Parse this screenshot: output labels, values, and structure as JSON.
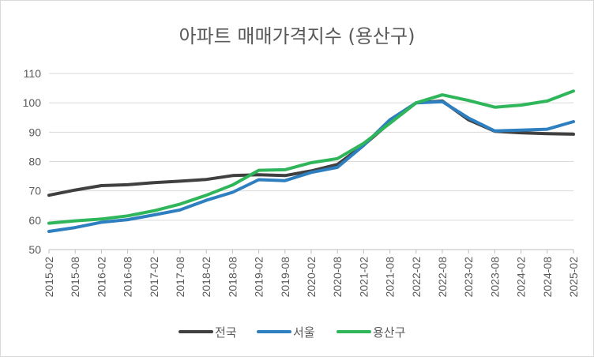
{
  "chart_data": {
    "type": "line",
    "title": "아파트 매매가격지수 (용산구)",
    "xlabel": "",
    "ylabel": "",
    "ylim": [
      50,
      110
    ],
    "yticks": [
      50,
      60,
      70,
      80,
      90,
      100,
      110
    ],
    "grid": true,
    "legend_position": "bottom",
    "x_tick_labels": [
      "2015-02",
      "2015-08",
      "2016-02",
      "2016-08",
      "2017-02",
      "2017-08",
      "2018-02",
      "2018-08",
      "2019-02",
      "2019-08",
      "2020-02",
      "2020-08",
      "2021-02",
      "2021-08",
      "2022-02",
      "2022-08",
      "2023-02",
      "2023-08",
      "2024-02",
      "2024-08",
      "2025-02"
    ],
    "series": [
      {
        "name": "전국",
        "color": "#404040",
        "points": [
          [
            "2015-02",
            68.5
          ],
          [
            "2015-08",
            70.3
          ],
          [
            "2016-02",
            71.8
          ],
          [
            "2016-08",
            72.1
          ],
          [
            "2017-02",
            72.8
          ],
          [
            "2017-08",
            73.3
          ],
          [
            "2018-02",
            73.9
          ],
          [
            "2018-08",
            75.2
          ],
          [
            "2019-02",
            75.5
          ],
          [
            "2019-08",
            75.2
          ],
          [
            "2020-02",
            76.8
          ],
          [
            "2020-08",
            79.0
          ],
          [
            "2021-02",
            85.6
          ],
          [
            "2021-08",
            93.2
          ],
          [
            "2022-02",
            100.0
          ],
          [
            "2022-08",
            100.6
          ],
          [
            "2023-02",
            94.2
          ],
          [
            "2023-08",
            90.3
          ],
          [
            "2024-02",
            89.8
          ],
          [
            "2024-08",
            89.5
          ],
          [
            "2025-02",
            89.3
          ]
        ]
      },
      {
        "name": "서울",
        "color": "#2e7fc0",
        "points": [
          [
            "2015-02",
            56.2
          ],
          [
            "2015-08",
            57.5
          ],
          [
            "2016-02",
            59.3
          ],
          [
            "2016-08",
            60.2
          ],
          [
            "2017-02",
            61.8
          ],
          [
            "2017-08",
            63.5
          ],
          [
            "2018-02",
            66.8
          ],
          [
            "2018-08",
            69.5
          ],
          [
            "2019-02",
            73.8
          ],
          [
            "2019-08",
            73.5
          ],
          [
            "2020-02",
            76.3
          ],
          [
            "2020-08",
            78.0
          ],
          [
            "2021-02",
            85.5
          ],
          [
            "2021-08",
            94.2
          ],
          [
            "2022-02",
            100.0
          ],
          [
            "2022-08",
            100.4
          ],
          [
            "2023-02",
            94.8
          ],
          [
            "2023-08",
            90.4
          ],
          [
            "2024-02",
            90.7
          ],
          [
            "2024-08",
            91.0
          ],
          [
            "2025-02",
            93.6
          ]
        ]
      },
      {
        "name": "용산구",
        "color": "#2fb55a",
        "points": [
          [
            "2015-02",
            59.0
          ],
          [
            "2015-08",
            59.8
          ],
          [
            "2016-02",
            60.4
          ],
          [
            "2016-08",
            61.5
          ],
          [
            "2017-02",
            63.2
          ],
          [
            "2017-08",
            65.5
          ],
          [
            "2018-02",
            68.5
          ],
          [
            "2018-08",
            72.0
          ],
          [
            "2019-02",
            77.0
          ],
          [
            "2019-08",
            77.2
          ],
          [
            "2020-02",
            79.6
          ],
          [
            "2020-08",
            81.0
          ],
          [
            "2021-02",
            86.2
          ],
          [
            "2021-08",
            93.0
          ],
          [
            "2022-02",
            100.0
          ],
          [
            "2022-08",
            102.7
          ],
          [
            "2023-02",
            100.8
          ],
          [
            "2023-08",
            98.5
          ],
          [
            "2024-02",
            99.2
          ],
          [
            "2024-08",
            100.6
          ],
          [
            "2025-02",
            104.0
          ]
        ]
      }
    ]
  }
}
